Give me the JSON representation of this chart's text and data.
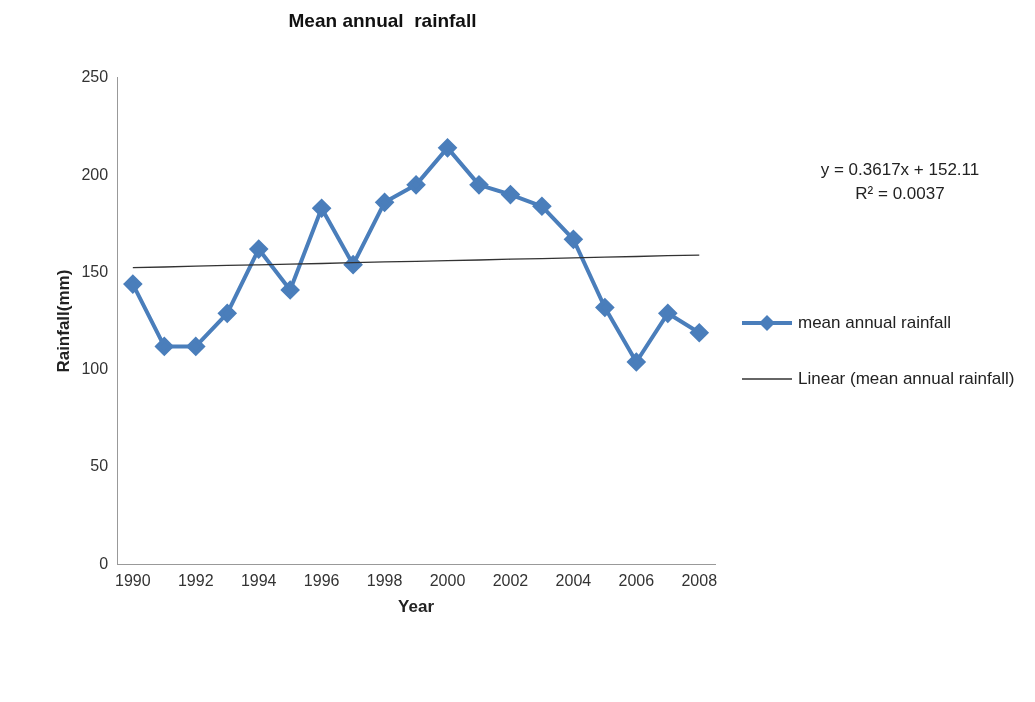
{
  "chart_data": {
    "type": "line",
    "title": "Mean annual  rainfall",
    "xlabel": "Year",
    "ylabel": "Rainfall(mm)",
    "categories": [
      "1990",
      null,
      "1992",
      null,
      "1994",
      null,
      "1996",
      null,
      "1998",
      null,
      "2000",
      null,
      "2002",
      null,
      "2004",
      null,
      "2006",
      null,
      "2008"
    ],
    "series": [
      {
        "name": "mean annual rainfall",
        "color": "#4a7ebb",
        "marker": "diamond",
        "values": [
          144,
          112,
          112,
          129,
          162,
          141,
          183,
          154,
          186,
          195,
          214,
          195,
          190,
          184,
          167,
          132,
          104,
          129,
          119
        ]
      },
      {
        "name": "Linear (mean annual rainfall)",
        "color": "#333333",
        "marker": "none",
        "values": [
          152.5,
          152.8,
          153.2,
          153.6,
          153.9,
          154.3,
          154.6,
          155.0,
          155.4,
          155.7,
          156.1,
          156.4,
          156.8,
          157.1,
          157.5,
          157.9,
          158.2,
          158.6,
          158.9
        ]
      }
    ],
    "ylim": [
      0,
      250
    ],
    "yticks": [
      0,
      50,
      100,
      150,
      200,
      250
    ],
    "grid": false,
    "legend": "right",
    "annotations": [
      "y = 0.3617x + 152.11",
      "R² = 0.0037"
    ]
  }
}
